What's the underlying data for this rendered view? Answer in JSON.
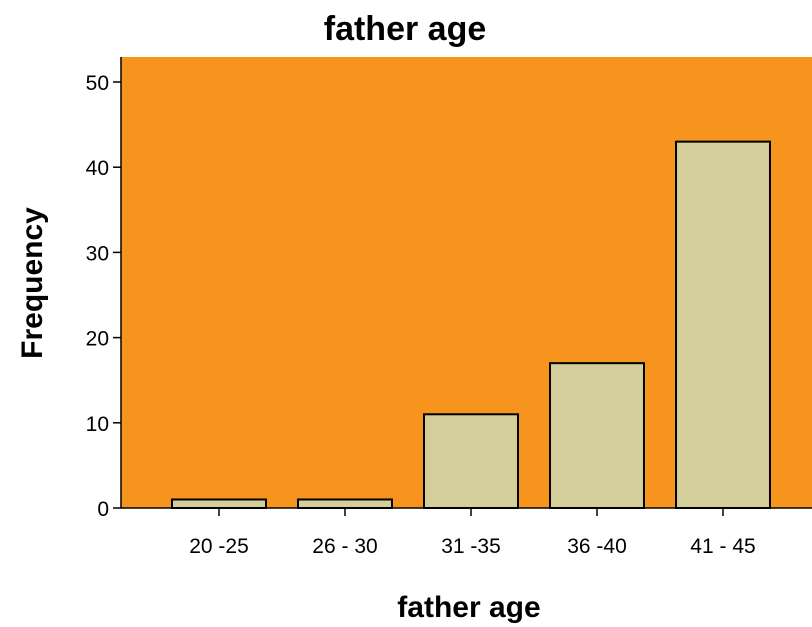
{
  "chart_data": {
    "type": "bar",
    "title": "father age",
    "xlabel": "father age",
    "ylabel": "Frequency",
    "categories": [
      "20 -25",
      "26 - 30",
      "31 -35",
      "36 -40",
      "41 - 45"
    ],
    "values": [
      1,
      1,
      11,
      17,
      43
    ],
    "ylim": [
      0,
      50
    ],
    "yticks": [
      0,
      10,
      20,
      30,
      40,
      50
    ],
    "grid": false,
    "colors": {
      "plot_background": "#F7941D",
      "bar_fill": "#D4CF9A",
      "bar_stroke": "#000000"
    }
  }
}
